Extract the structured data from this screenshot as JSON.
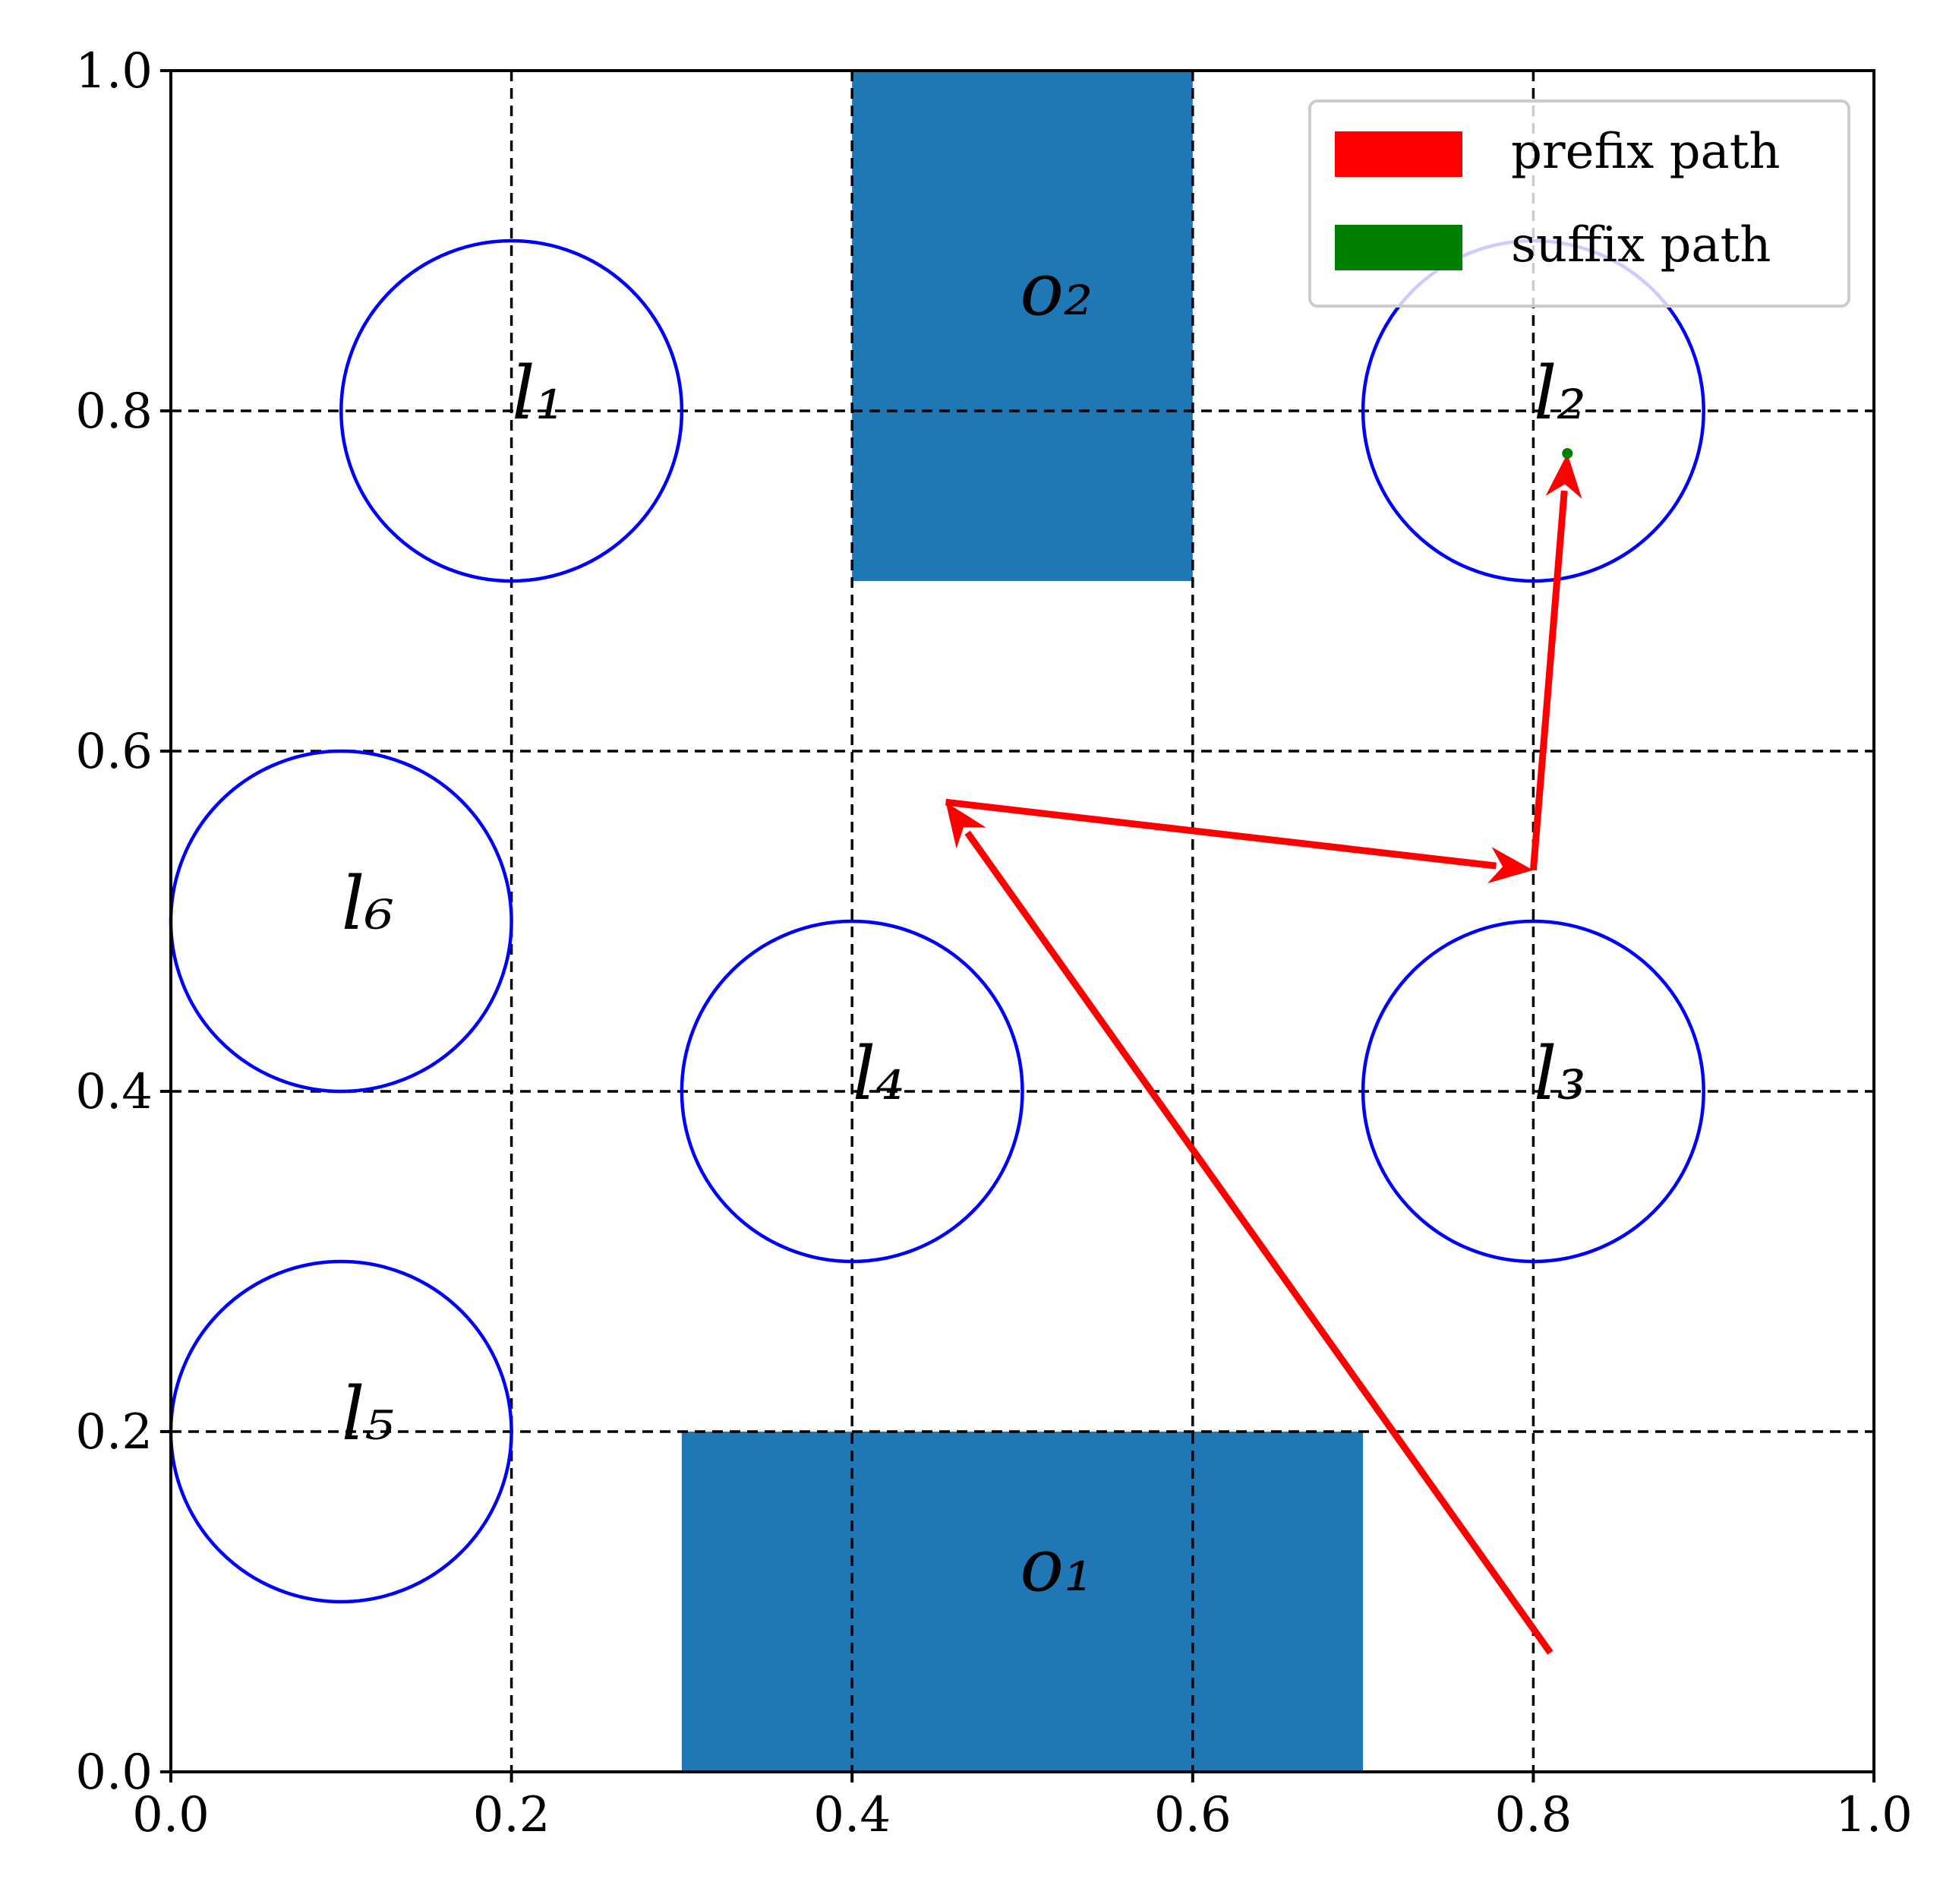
{
  "chart_data": {
    "type": "scatter",
    "xlim": [
      0.0,
      1.0
    ],
    "ylim": [
      0.0,
      1.0
    ],
    "x_ticks": [
      "0.0",
      "0.2",
      "0.4",
      "0.6",
      "0.8",
      "1.0"
    ],
    "y_ticks": [
      "0.0",
      "0.2",
      "0.4",
      "0.6",
      "0.8",
      "1.0"
    ],
    "grid": true,
    "grid_style": "dashed",
    "legend_position": "top-right",
    "legend": [
      {
        "label": "prefix path",
        "color": "#ff0000"
      },
      {
        "label": "suffix path",
        "color": "#008000"
      }
    ],
    "obstacles": [
      {
        "label": "o₁",
        "x": [
          0.3,
          0.7
        ],
        "y": [
          0.0,
          0.2
        ],
        "label_at": [
          0.52,
          0.12
        ],
        "color": "#1f77b4"
      },
      {
        "label": "o₂",
        "x": [
          0.4,
          0.6
        ],
        "y": [
          0.7,
          1.0
        ],
        "label_at": [
          0.52,
          0.87
        ],
        "color": "#1f77b4"
      }
    ],
    "regions": [
      {
        "label": "l₁",
        "center": [
          0.2,
          0.8
        ],
        "radius": 0.1
      },
      {
        "label": "l₂",
        "center": [
          0.8,
          0.8
        ],
        "radius": 0.1
      },
      {
        "label": "l₃",
        "center": [
          0.8,
          0.4
        ],
        "radius": 0.1
      },
      {
        "label": "l₄",
        "center": [
          0.4,
          0.4
        ],
        "radius": 0.1
      },
      {
        "label": "l₅",
        "center": [
          0.1,
          0.2
        ],
        "radius": 0.1
      },
      {
        "label": "l₆",
        "center": [
          0.1,
          0.5
        ],
        "radius": 0.1
      }
    ],
    "region_color": "#0000ff",
    "prefix_path": [
      [
        0.81,
        0.07
      ],
      [
        0.455,
        0.57
      ],
      [
        0.8,
        0.53
      ],
      [
        0.82,
        0.775
      ]
    ],
    "suffix_path": [
      [
        0.82,
        0.775
      ]
    ]
  }
}
